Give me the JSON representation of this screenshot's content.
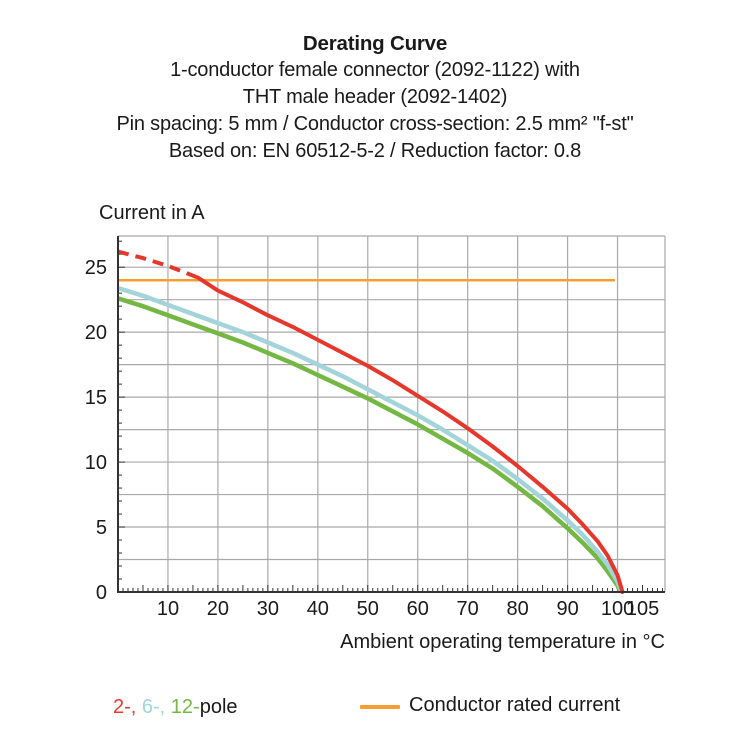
{
  "title_block": {
    "line1": "Derating Curve",
    "line2": "1-conductor female connector (2092-1122) with",
    "line3": "THT male header (2092-1402)",
    "line4": "Pin spacing: 5 mm / Conductor cross-section: 2.5 mm² \"f-st\"",
    "line5": "Based on: EN 60512-5-2 / Reduction factor: 0.8"
  },
  "chart_data": {
    "type": "line",
    "title": "Derating Curve",
    "xlabel": "Ambient operating temperature in °C",
    "ylabel": "Current in A",
    "xlim": [
      0,
      109.5
    ],
    "ylim": [
      0,
      27.4
    ],
    "x_tick_labels": [
      10,
      20,
      30,
      40,
      50,
      60,
      70,
      80,
      90,
      100,
      105
    ],
    "y_tick_labels": [
      0,
      5,
      10,
      15,
      20,
      25
    ],
    "x_gridlines": [
      10,
      20,
      30,
      40,
      50,
      60,
      70,
      80,
      90,
      100
    ],
    "y_gridlines": [
      2.5,
      5,
      7.5,
      10,
      12.5,
      15,
      17.5,
      20,
      22.5,
      25
    ],
    "grid": true,
    "minor_tick_step": {
      "x_deg": 1,
      "y_amp": 1
    },
    "colors": {
      "red_2pole": "#e6372c",
      "cyan_6pole": "#a2d4d9",
      "green_12pole": "#74b843",
      "orange_rated": "#f59f33",
      "grid": "#a9a9a9",
      "axis": "#333333",
      "text": "#1a1a1a"
    },
    "series": [
      {
        "name": "Conductor rated current",
        "color": "#f59f33",
        "width": 2.5,
        "points": [
          [
            0,
            24
          ],
          [
            99.5,
            24
          ]
        ]
      },
      {
        "name": "12-pole",
        "color": "#74b843",
        "width": 4.5,
        "points": [
          [
            0,
            22.6
          ],
          [
            5,
            22.0
          ],
          [
            10,
            21.3
          ],
          [
            15,
            20.6
          ],
          [
            20,
            19.9
          ],
          [
            25,
            19.2
          ],
          [
            30,
            18.4
          ],
          [
            35,
            17.6
          ],
          [
            40,
            16.7
          ],
          [
            45,
            15.8
          ],
          [
            50,
            14.9
          ],
          [
            55,
            13.9
          ],
          [
            60,
            12.9
          ],
          [
            65,
            11.8
          ],
          [
            70,
            10.7
          ],
          [
            75,
            9.5
          ],
          [
            80,
            8.1
          ],
          [
            85,
            6.6
          ],
          [
            90,
            4.9
          ],
          [
            93,
            3.8
          ],
          [
            96,
            2.6
          ],
          [
            98,
            1.6
          ],
          [
            100,
            0.5
          ],
          [
            100.6,
            0
          ]
        ]
      },
      {
        "name": "6-pole",
        "color": "#a2d4d9",
        "width": 4.5,
        "points": [
          [
            0,
            23.4
          ],
          [
            5,
            22.8
          ],
          [
            10,
            22.1
          ],
          [
            15,
            21.4
          ],
          [
            20,
            20.7
          ],
          [
            25,
            20.0
          ],
          [
            30,
            19.2
          ],
          [
            35,
            18.4
          ],
          [
            40,
            17.5
          ],
          [
            45,
            16.6
          ],
          [
            50,
            15.6
          ],
          [
            55,
            14.6
          ],
          [
            60,
            13.6
          ],
          [
            65,
            12.5
          ],
          [
            70,
            11.3
          ],
          [
            75,
            10.1
          ],
          [
            80,
            8.7
          ],
          [
            85,
            7.2
          ],
          [
            90,
            5.5
          ],
          [
            93,
            4.4
          ],
          [
            96,
            3.1
          ],
          [
            98,
            2.1
          ],
          [
            100,
            0.8
          ],
          [
            100.8,
            0
          ]
        ]
      },
      {
        "name": "2-pole",
        "color": "#e6372c",
        "width": 4,
        "dash_until_x": 16,
        "dash_pattern": "11 7",
        "points": [
          [
            0,
            26.2
          ],
          [
            5,
            25.7
          ],
          [
            10,
            25.1
          ],
          [
            13,
            24.65
          ],
          [
            16,
            24.2
          ],
          [
            20,
            23.2
          ],
          [
            25,
            22.3
          ],
          [
            30,
            21.3
          ],
          [
            35,
            20.4
          ],
          [
            40,
            19.4
          ],
          [
            45,
            18.4
          ],
          [
            50,
            17.4
          ],
          [
            55,
            16.3
          ],
          [
            60,
            15.1
          ],
          [
            65,
            13.9
          ],
          [
            70,
            12.6
          ],
          [
            75,
            11.2
          ],
          [
            80,
            9.7
          ],
          [
            85,
            8.1
          ],
          [
            90,
            6.4
          ],
          [
            93,
            5.2
          ],
          [
            96,
            3.9
          ],
          [
            98,
            2.8
          ],
          [
            100,
            1.3
          ],
          [
            101,
            0
          ]
        ]
      }
    ]
  },
  "legend": {
    "pole_parts": [
      {
        "text": "2-,",
        "color": "#e6372c"
      },
      {
        "text": " 6-,",
        "color": "#a2d4d9"
      },
      {
        "text": " 12-",
        "color": "#74b843"
      },
      {
        "text": "pole",
        "color": "#1a1a1a"
      }
    ],
    "rated": {
      "label": "Conductor rated current",
      "color": "#f59f33"
    }
  }
}
